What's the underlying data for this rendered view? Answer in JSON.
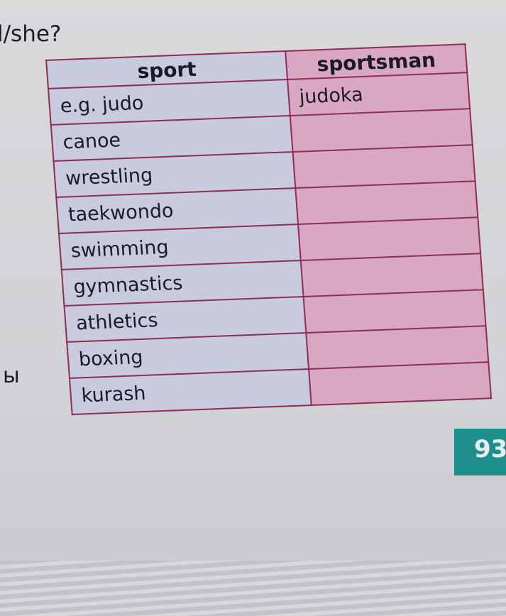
{
  "heading": "l/she?",
  "side_letter": "ы",
  "page_number": "93",
  "table": {
    "header": {
      "sport": "sport",
      "sportsman": "sportsman"
    },
    "rows": [
      {
        "sport": "e.g. judo",
        "sportsman": "judoka"
      },
      {
        "sport": "canoe"
      },
      {
        "sport": "wrestling"
      },
      {
        "sport": "taekwondo"
      },
      {
        "sport": "swimming"
      },
      {
        "sport": "gymnastics"
      },
      {
        "sport": "athletics"
      },
      {
        "sport": "boxing"
      },
      {
        "sport": "kurash"
      }
    ]
  }
}
